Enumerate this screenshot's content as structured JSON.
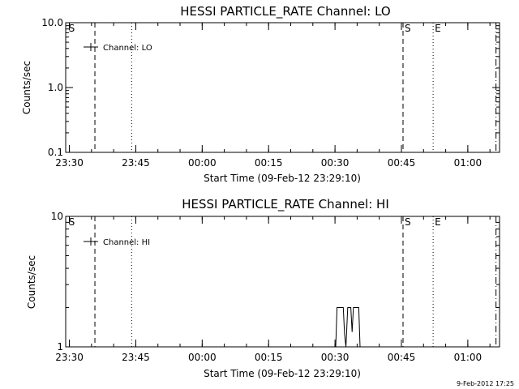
{
  "timestamp": "9-Feb-2012 17:25",
  "chart_data": [
    {
      "type": "line",
      "title": "HESSI PARTICLE_RATE Channel: LO",
      "xlabel": "Start Time (09-Feb-12 23:29:10)",
      "ylabel": "Counts/sec",
      "x_ticks": [
        "23:30",
        "23:45",
        "00:00",
        "00:15",
        "00:30",
        "00:45",
        "01:00"
      ],
      "y_ticks": [
        "0.1",
        "1.0",
        "10.0"
      ],
      "y_scale": "log",
      "ylim": [
        0.1,
        10
      ],
      "legend": "Channel: LO",
      "legend_position": "top-left",
      "markers": [
        {
          "label": "S",
          "time_min": 0.3,
          "style": "none"
        },
        {
          "label": "",
          "time_min": 6.6,
          "style": "dashed"
        },
        {
          "label": "",
          "time_min": 14.9,
          "style": "dotted"
        },
        {
          "label": "S",
          "time_min": 76.2,
          "style": "dashed"
        },
        {
          "label": "E",
          "time_min": 83.0,
          "style": "dotted"
        },
        {
          "label": "",
          "time_min": 97.2,
          "style": "dashdot"
        }
      ],
      "series": [
        {
          "name": "Channel: LO",
          "points": []
        }
      ]
    },
    {
      "type": "line",
      "title": "HESSI PARTICLE_RATE Channel: HI",
      "xlabel": "Start Time (09-Feb-12 23:29:10)",
      "ylabel": "Counts/sec",
      "x_ticks": [
        "23:30",
        "23:45",
        "00:00",
        "00:15",
        "00:30",
        "00:45",
        "01:00"
      ],
      "y_ticks": [
        "1",
        "10"
      ],
      "y_scale": "log",
      "ylim": [
        1,
        10
      ],
      "legend": "Channel: HI",
      "legend_position": "top-left",
      "markers": [
        {
          "label": "S",
          "time_min": 0.3,
          "style": "none"
        },
        {
          "label": "",
          "time_min": 6.6,
          "style": "dashed"
        },
        {
          "label": "",
          "time_min": 14.9,
          "style": "dotted"
        },
        {
          "label": "S",
          "time_min": 76.2,
          "style": "dashed"
        },
        {
          "label": "E",
          "time_min": 83.0,
          "style": "dotted"
        },
        {
          "label": "",
          "time_min": 97.2,
          "style": "dashdot"
        }
      ],
      "series": [
        {
          "name": "Channel: HI",
          "points": [
            [
              61.0,
              1
            ],
            [
              61.3,
              2
            ],
            [
              62.7,
              2
            ],
            [
              63.0,
              1.25
            ],
            [
              63.3,
              1
            ],
            [
              63.7,
              2
            ],
            [
              64.4,
              2
            ],
            [
              64.7,
              1.3
            ],
            [
              65.0,
              2
            ],
            [
              66.2,
              2
            ],
            [
              66.5,
              1
            ]
          ]
        }
      ]
    }
  ]
}
